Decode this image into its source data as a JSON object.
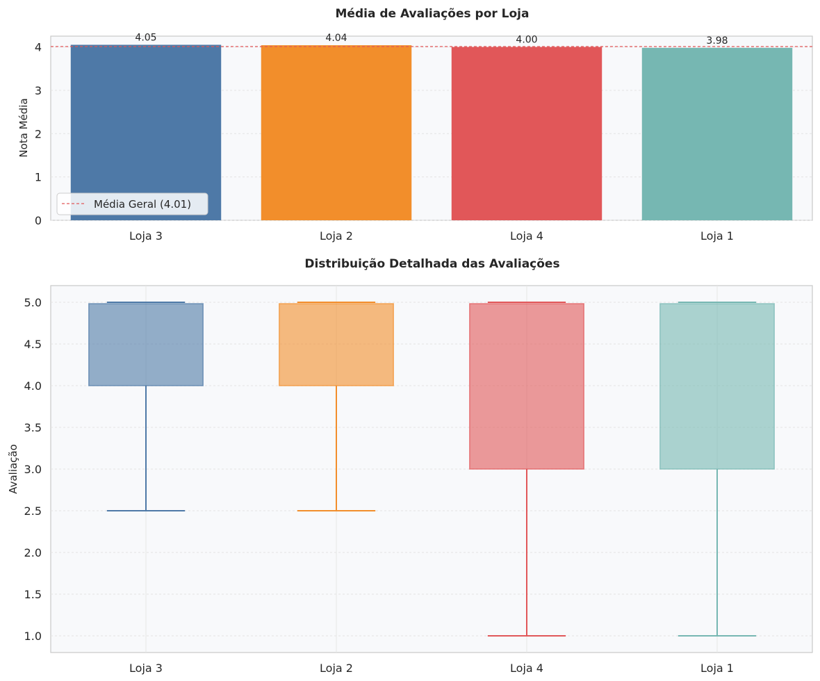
{
  "chart_data": [
    {
      "type": "bar",
      "title": "Média de Avaliações por Loja",
      "xlabel": "",
      "ylabel": "Nota Média",
      "categories": [
        "Loja 3",
        "Loja 2",
        "Loja 4",
        "Loja 1"
      ],
      "values": [
        4.05,
        4.04,
        4.0,
        3.98
      ],
      "value_labels": [
        "4.05",
        "4.04",
        "4.00",
        "3.98"
      ],
      "colors": [
        "#4e79a7",
        "#f28e2b",
        "#e15759",
        "#76b7b2"
      ],
      "ylim": [
        0,
        4.25
      ],
      "yticks": [
        0,
        1,
        2,
        3,
        4
      ],
      "reference_line": {
        "value": 4.01,
        "label": "Média Geral (4.01)",
        "color": "#e15759",
        "style": "dashed"
      },
      "legend": "lower-left",
      "grid": true
    },
    {
      "type": "box",
      "title": "Distribuição Detalhada das Avaliações",
      "xlabel": "",
      "ylabel": "Avaliação",
      "categories": [
        "Loja 3",
        "Loja 2",
        "Loja 4",
        "Loja 1"
      ],
      "boxes": [
        {
          "whisker_low": 2.5,
          "q1": 4.0,
          "median": 5.0,
          "q3": 5.0,
          "whisker_high": 5.0
        },
        {
          "whisker_low": 2.5,
          "q1": 4.0,
          "median": 5.0,
          "q3": 5.0,
          "whisker_high": 5.0
        },
        {
          "whisker_low": 1.0,
          "q1": 3.0,
          "median": 5.0,
          "q3": 5.0,
          "whisker_high": 5.0
        },
        {
          "whisker_low": 1.0,
          "q1": 3.0,
          "median": 5.0,
          "q3": 5.0,
          "whisker_high": 5.0
        }
      ],
      "colors": [
        "#4e79a7",
        "#f28e2b",
        "#e15759",
        "#76b7b2"
      ],
      "ylim": [
        0.8,
        5.2
      ],
      "yticks": [
        "1.0",
        "1.5",
        "2.0",
        "2.5",
        "3.0",
        "3.5",
        "4.0",
        "4.5",
        "5.0"
      ],
      "grid": true
    }
  ]
}
